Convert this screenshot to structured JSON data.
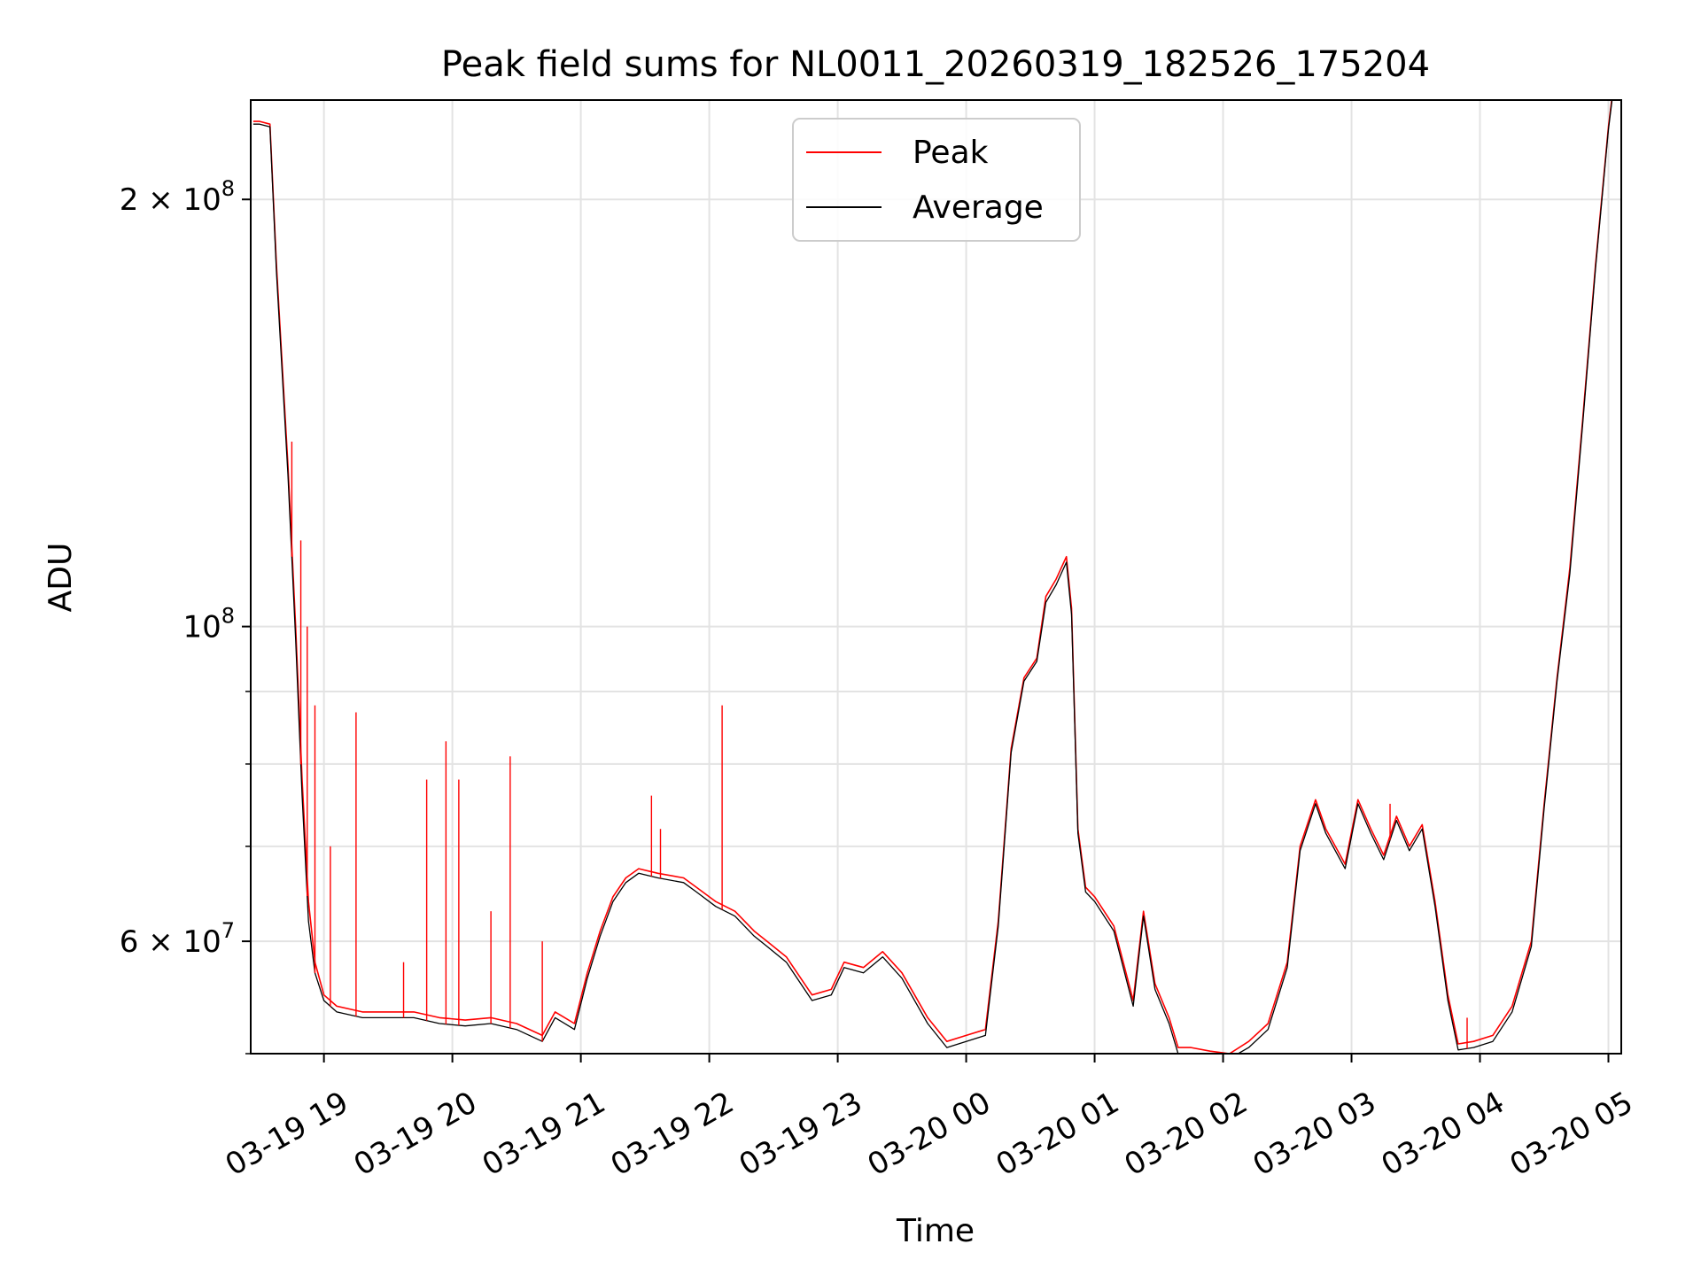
{
  "chart_data": {
    "type": "line",
    "title": "Peak field sums for NL0011_20260319_182526_175204",
    "xlabel": "Time",
    "ylabel": "ADU",
    "yscale": "log",
    "xlim_hours": [
      18.43,
      29.1
    ],
    "ylim": [
      50000000,
      235000000
    ],
    "x_tick_labels": [
      "03-19 19",
      "03-19 20",
      "03-19 21",
      "03-19 22",
      "03-19 23",
      "03-20 00",
      "03-20 01",
      "03-20 02",
      "03-20 03",
      "03-20 04",
      "03-20 05"
    ],
    "x_tick_hours": [
      19,
      20,
      21,
      22,
      23,
      24,
      25,
      26,
      27,
      28,
      29
    ],
    "y_ticks": [
      {
        "value": 200000000,
        "mantissa": "2",
        "exponent": "8"
      },
      {
        "value": 100000000,
        "mantissa": "",
        "exponent": "8"
      },
      {
        "value": 60000000,
        "mantissa": "6",
        "exponent": "7"
      }
    ],
    "y_minor_ticks": [
      50000000,
      70000000,
      80000000,
      90000000
    ],
    "grid": true,
    "legend_position": "top-center",
    "series": [
      {
        "name": "Peak",
        "color": "#ff0000",
        "x_hours": [
          18.45,
          18.5,
          18.58,
          18.63,
          18.72,
          18.78,
          18.83,
          18.88,
          18.93,
          19.0,
          19.1,
          19.3,
          19.5,
          19.7,
          19.9,
          20.1,
          20.3,
          20.5,
          20.7,
          20.8,
          20.95,
          21.05,
          21.15,
          21.25,
          21.35,
          21.45,
          21.6,
          21.8,
          21.9,
          22.05,
          22.2,
          22.35,
          22.45,
          22.6,
          22.8,
          22.95,
          23.05,
          23.2,
          23.35,
          23.5,
          23.7,
          23.85,
          24.0,
          24.15,
          24.25,
          24.35,
          24.45,
          24.55,
          24.62,
          24.7,
          24.78,
          24.82,
          24.87,
          24.93,
          25.0,
          25.15,
          25.3,
          25.38,
          25.47,
          25.58,
          25.65,
          25.75,
          25.9,
          26.05,
          26.2,
          26.35,
          26.5,
          26.6,
          26.72,
          26.8,
          26.95,
          27.05,
          27.15,
          27.25,
          27.35,
          27.45,
          27.55,
          27.65,
          27.75,
          27.83,
          27.95,
          28.1,
          28.25,
          28.4,
          28.5,
          28.6,
          28.7,
          28.8,
          28.9,
          29.0,
          29.05
        ],
        "values": [
          227000000,
          227000000,
          226000000,
          180000000,
          130000000,
          100000000,
          78000000,
          64000000,
          58000000,
          55000000,
          54000000,
          53500000,
          53500000,
          53500000,
          53000000,
          52800000,
          53000000,
          52500000,
          51500000,
          53500000,
          52500000,
          57000000,
          61000000,
          64500000,
          66500000,
          67500000,
          67000000,
          66500000,
          65500000,
          64000000,
          63000000,
          61000000,
          60000000,
          58500000,
          55000000,
          55500000,
          58000000,
          57500000,
          59000000,
          57000000,
          53000000,
          51000000,
          51500000,
          52000000,
          62000000,
          82000000,
          92000000,
          95000000,
          105000000,
          108000000,
          112000000,
          103000000,
          72000000,
          65500000,
          64500000,
          61500000,
          54500000,
          63000000,
          56000000,
          53000000,
          50500000,
          50500000,
          50200000,
          50000000,
          51000000,
          52500000,
          58000000,
          70000000,
          75500000,
          72000000,
          68000000,
          75500000,
          72000000,
          69000000,
          73500000,
          70000000,
          72500000,
          64000000,
          55000000,
          50800000,
          51000000,
          51500000,
          54000000,
          60000000,
          75000000,
          92000000,
          110000000,
          140000000,
          180000000,
          225000000,
          245000000
        ]
      },
      {
        "name": "Average",
        "color": "#000000",
        "x_hours": [
          18.45,
          18.5,
          18.58,
          18.63,
          18.72,
          18.78,
          18.83,
          18.88,
          18.93,
          19.0,
          19.1,
          19.3,
          19.5,
          19.7,
          19.9,
          20.1,
          20.3,
          20.5,
          20.7,
          20.8,
          20.95,
          21.05,
          21.15,
          21.25,
          21.35,
          21.45,
          21.6,
          21.8,
          21.9,
          22.05,
          22.2,
          22.35,
          22.45,
          22.6,
          22.8,
          22.95,
          23.05,
          23.2,
          23.35,
          23.5,
          23.7,
          23.85,
          24.0,
          24.15,
          24.25,
          24.35,
          24.45,
          24.55,
          24.62,
          24.7,
          24.78,
          24.82,
          24.87,
          24.93,
          25.0,
          25.15,
          25.3,
          25.38,
          25.47,
          25.58,
          25.65,
          25.75,
          25.9,
          26.05,
          26.2,
          26.35,
          26.5,
          26.6,
          26.72,
          26.8,
          26.95,
          27.05,
          27.15,
          27.25,
          27.35,
          27.45,
          27.55,
          27.65,
          27.75,
          27.83,
          27.95,
          28.1,
          28.25,
          28.4,
          28.5,
          28.6,
          28.7,
          28.8,
          28.9,
          29.0,
          29.05
        ],
        "values": [
          226000000,
          226000000,
          225000000,
          178000000,
          128000000,
          98000000,
          76000000,
          62000000,
          57000000,
          54500000,
          53500000,
          53000000,
          53000000,
          53000000,
          52500000,
          52300000,
          52500000,
          52000000,
          51000000,
          53000000,
          52000000,
          56500000,
          60500000,
          64000000,
          66000000,
          67000000,
          66500000,
          66000000,
          65000000,
          63500000,
          62500000,
          60500000,
          59500000,
          58000000,
          54500000,
          55000000,
          57500000,
          57000000,
          58500000,
          56500000,
          52500000,
          50500000,
          51000000,
          51500000,
          61500000,
          81500000,
          91500000,
          94500000,
          104000000,
          107000000,
          111000000,
          102000000,
          71500000,
          65000000,
          64000000,
          61000000,
          54000000,
          62500000,
          55500000,
          52500000,
          50000000,
          50000000,
          49800000,
          49600000,
          50500000,
          52000000,
          57500000,
          69500000,
          75000000,
          71500000,
          67500000,
          75000000,
          71500000,
          68500000,
          73000000,
          69500000,
          72000000,
          63500000,
          54500000,
          50300000,
          50500000,
          51000000,
          53500000,
          59500000,
          74500000,
          91500000,
          109000000,
          139000000,
          179000000,
          224000000,
          244000000
        ]
      }
    ],
    "peak_spikes": [
      {
        "hour": 18.75,
        "value": 135000000
      },
      {
        "hour": 18.82,
        "value": 115000000
      },
      {
        "hour": 18.87,
        "value": 100000000
      },
      {
        "hour": 18.93,
        "value": 88000000
      },
      {
        "hour": 19.05,
        "value": 70000000
      },
      {
        "hour": 19.25,
        "value": 87000000
      },
      {
        "hour": 19.62,
        "value": 58000000
      },
      {
        "hour": 19.8,
        "value": 78000000
      },
      {
        "hour": 19.95,
        "value": 83000000
      },
      {
        "hour": 20.05,
        "value": 78000000
      },
      {
        "hour": 20.3,
        "value": 63000000
      },
      {
        "hour": 20.45,
        "value": 81000000
      },
      {
        "hour": 20.7,
        "value": 60000000
      },
      {
        "hour": 21.55,
        "value": 76000000
      },
      {
        "hour": 21.62,
        "value": 72000000
      },
      {
        "hour": 22.1,
        "value": 88000000
      },
      {
        "hour": 27.3,
        "value": 75000000
      },
      {
        "hour": 27.9,
        "value": 53000000
      }
    ]
  }
}
